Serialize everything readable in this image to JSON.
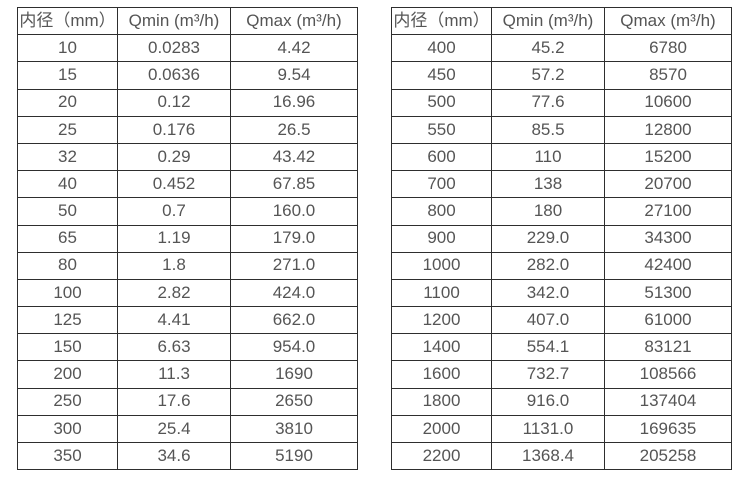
{
  "colors": {
    "background": "#ffffff",
    "border": "#2e2e2e",
    "text": "#555555"
  },
  "tables": [
    {
      "name": "small-diameter-flow-table",
      "headers": [
        "内径（mm）",
        "Qmin (m³/h)",
        "Qmax (m³/h)"
      ],
      "rows": [
        [
          "10",
          "0.0283",
          "4.42"
        ],
        [
          "15",
          "0.0636",
          "9.54"
        ],
        [
          "20",
          "0.12",
          "16.96"
        ],
        [
          "25",
          "0.176",
          "26.5"
        ],
        [
          "32",
          "0.29",
          "43.42"
        ],
        [
          "40",
          "0.452",
          "67.85"
        ],
        [
          "50",
          "0.7",
          "160.0"
        ],
        [
          "65",
          "1.19",
          "179.0"
        ],
        [
          "80",
          "1.8",
          "271.0"
        ],
        [
          "100",
          "2.82",
          "424.0"
        ],
        [
          "125",
          "4.41",
          "662.0"
        ],
        [
          "150",
          "6.63",
          "954.0"
        ],
        [
          "200",
          "11.3",
          "1690"
        ],
        [
          "250",
          "17.6",
          "2650"
        ],
        [
          "300",
          "25.4",
          "3810"
        ],
        [
          "350",
          "34.6",
          "5190"
        ]
      ]
    },
    {
      "name": "large-diameter-flow-table",
      "headers": [
        "内径（mm）",
        "Qmin (m³/h)",
        "Qmax (m³/h)"
      ],
      "rows": [
        [
          "400",
          "45.2",
          "6780"
        ],
        [
          "450",
          "57.2",
          "8570"
        ],
        [
          "500",
          "77.6",
          "10600"
        ],
        [
          "550",
          "85.5",
          "12800"
        ],
        [
          "600",
          "110",
          "15200"
        ],
        [
          "700",
          "138",
          "20700"
        ],
        [
          "800",
          "180",
          "27100"
        ],
        [
          "900",
          "229.0",
          "34300"
        ],
        [
          "1000",
          "282.0",
          "42400"
        ],
        [
          "1100",
          "342.0",
          "51300"
        ],
        [
          "1200",
          "407.0",
          "61000"
        ],
        [
          "1400",
          "554.1",
          "83121"
        ],
        [
          "1600",
          "732.7",
          "108566"
        ],
        [
          "1800",
          "916.0",
          "137404"
        ],
        [
          "2000",
          "1131.0",
          "169635"
        ],
        [
          "2200",
          "1368.4",
          "205258"
        ]
      ]
    }
  ]
}
